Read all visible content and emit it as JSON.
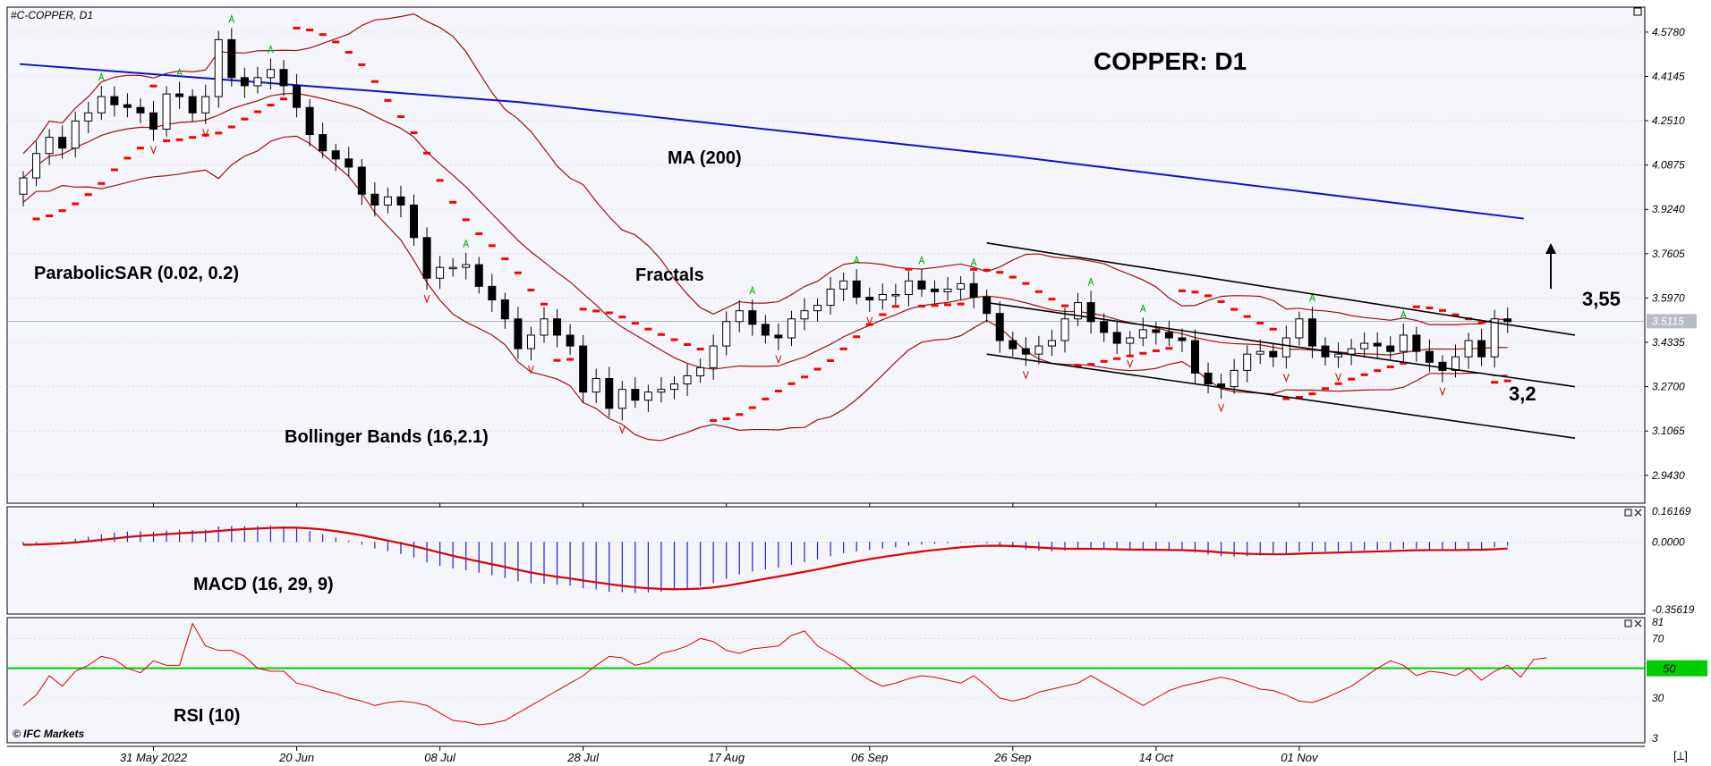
{
  "header": {
    "symbol": "#C-COPPER, D1",
    "title": "COPPER: D1",
    "copyright": "© IFC Markets",
    "corner_icon": "[⟂]"
  },
  "colors": {
    "background": "#f4f6fb",
    "bull": "#ffffff",
    "bear": "#000000",
    "bollinger": "#a01010",
    "ma200": "#1010cc",
    "sar": "#ff0000",
    "fractal_up": "#00b000",
    "fractal_down": "#cc0000",
    "macd_hist": "#2020d0",
    "macd_signal": "#e00000",
    "rsi": "#e00000",
    "rsi_level": "#00cc00"
  },
  "annotations": {
    "parabolic_sar": "ParabolicSAR (0.02, 0.2)",
    "fractals": "Fractals",
    "bollinger": "Bollinger Bands (16,2.1)",
    "ma": "MA (200)",
    "macd": "MACD (16, 29, 9)",
    "rsi": "RSI (10)",
    "target_up": "3,55",
    "target_down": "3,2"
  },
  "chart_data": {
    "type": "candlestick",
    "title": "COPPER: D1",
    "symbol": "#C-COPPER",
    "timeframe": "D1",
    "x_tick_labels": [
      "31 May 2022",
      "20 Jun",
      "08 Jul",
      "28 Jul",
      "17 Aug",
      "06 Sep",
      "26 Sep",
      "14 Oct",
      "01 Nov"
    ],
    "y_tick_labels": [
      "4.5780",
      "4.4145",
      "4.2510",
      "4.0875",
      "3.9240",
      "3.7605",
      "3.5970",
      "3.4335",
      "3.2700",
      "3.1065",
      "2.9430"
    ],
    "ylim": [
      2.84,
      4.67
    ],
    "current_price": "3.5115",
    "closes": [
      4.04,
      4.13,
      4.19,
      4.15,
      4.25,
      4.28,
      4.34,
      4.31,
      4.3,
      4.28,
      4.22,
      4.35,
      4.34,
      4.28,
      4.34,
      4.55,
      4.41,
      4.38,
      4.41,
      4.44,
      4.38,
      4.3,
      4.2,
      4.14,
      4.11,
      4.08,
      3.98,
      3.94,
      3.97,
      3.94,
      3.82,
      3.67,
      3.71,
      3.71,
      3.72,
      3.64,
      3.59,
      3.52,
      3.41,
      3.46,
      3.52,
      3.46,
      3.42,
      3.25,
      3.3,
      3.19,
      3.26,
      3.22,
      3.25,
      3.26,
      3.28,
      3.31,
      3.34,
      3.42,
      3.51,
      3.55,
      3.5,
      3.46,
      3.45,
      3.52,
      3.55,
      3.57,
      3.63,
      3.66,
      3.6,
      3.59,
      3.61,
      3.61,
      3.66,
      3.63,
      3.62,
      3.63,
      3.65,
      3.6,
      3.54,
      3.44,
      3.41,
      3.39,
      3.42,
      3.44,
      3.52,
      3.58,
      3.51,
      3.47,
      3.43,
      3.45,
      3.48,
      3.47,
      3.45,
      3.44,
      3.32,
      3.28,
      3.27,
      3.33,
      3.39,
      3.4,
      3.38,
      3.45,
      3.52,
      3.42,
      3.38,
      3.39,
      3.41,
      3.43,
      3.42,
      3.4,
      3.46,
      3.4,
      3.36,
      3.33,
      3.38,
      3.44,
      3.38,
      3.52,
      3.51
    ],
    "ma200": [
      4.46,
      4.32,
      4.12,
      3.89
    ],
    "macd_range": [
      -0.35619,
      0.16169
    ],
    "macd_ticks": [
      "0.16169",
      "0.0000",
      "-0.35619"
    ],
    "rsi_ticks": [
      "81",
      "70",
      "50",
      "30",
      "3"
    ],
    "rsi_level": 50,
    "rsi_level_label": "50",
    "rsi": [
      25,
      32,
      45,
      38,
      48,
      52,
      58,
      56,
      50,
      47,
      55,
      52,
      52,
      80,
      65,
      62,
      62,
      58,
      50,
      48,
      48,
      40,
      38,
      35,
      33,
      30,
      28,
      25,
      27,
      28,
      27,
      25,
      20,
      15,
      14,
      12,
      13,
      15,
      20,
      25,
      30,
      35,
      40,
      45,
      52,
      58,
      57,
      52,
      54,
      60,
      62,
      65,
      70,
      68,
      62,
      60,
      63,
      64,
      65,
      72,
      75,
      65,
      60,
      55,
      48,
      42,
      38,
      40,
      43,
      45,
      44,
      42,
      40,
      45,
      38,
      30,
      28,
      30,
      34,
      36,
      38,
      40,
      45,
      40,
      35,
      30,
      25,
      30,
      35,
      38,
      40,
      42,
      44,
      42,
      39,
      36,
      35,
      32,
      28,
      27,
      30,
      34,
      38,
      44,
      50,
      55,
      52,
      45,
      48,
      47,
      45,
      50,
      42,
      48,
      52,
      44,
      56,
      57
    ]
  }
}
